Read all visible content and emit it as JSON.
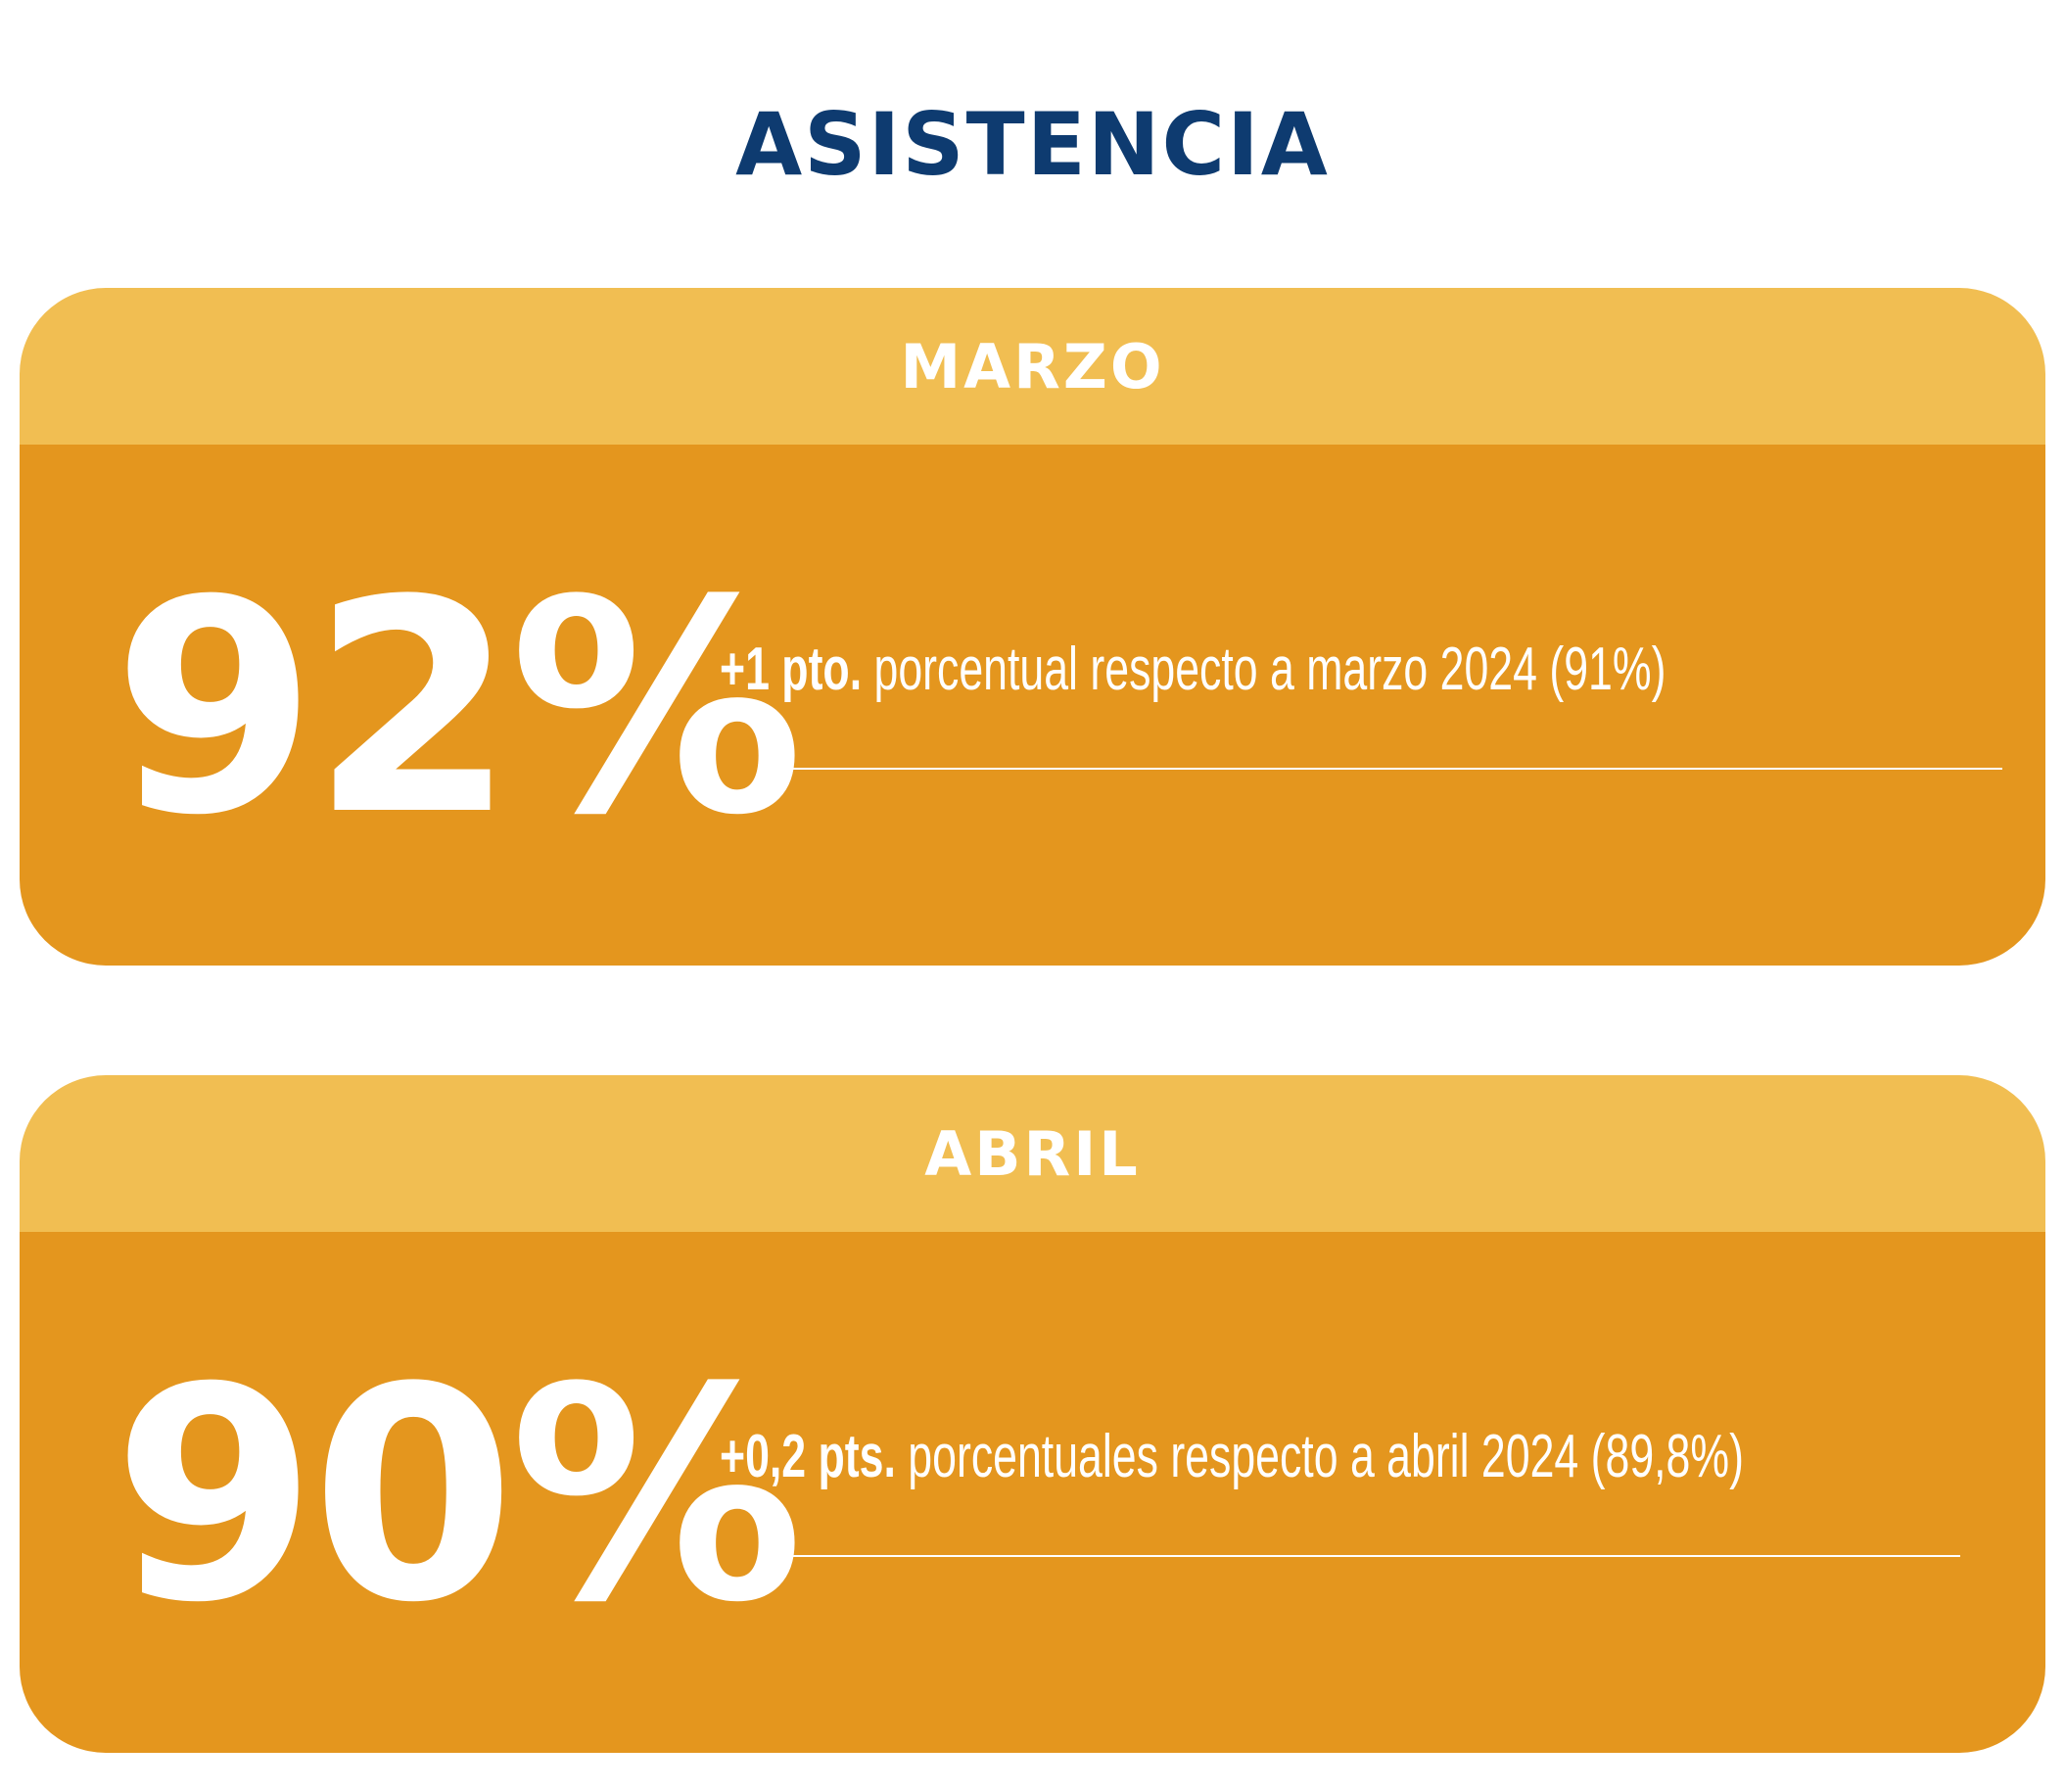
{
  "title": "ASISTENCIA",
  "colors": {
    "title": "#0e3b70",
    "header_band": "#f1be52",
    "body_band": "#e4961e",
    "text": "#ffffff"
  },
  "cards": [
    {
      "month": "MARZO",
      "value": "92%",
      "change": "+1 pto.",
      "description": "porcentual respecto a marzo 2024 (91%)"
    },
    {
      "month": "ABRIL",
      "value": "90%",
      "change": "+0,2 pts.",
      "description": "porcentuales respecto a abril 2024 (89,8%)"
    }
  ]
}
